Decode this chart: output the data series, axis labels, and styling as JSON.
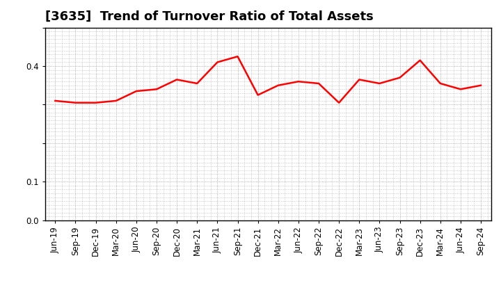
{
  "title": "[3635]  Trend of Turnover Ratio of Total Assets",
  "x_labels": [
    "Jun-19",
    "Sep-19",
    "Dec-19",
    "Mar-20",
    "Jun-20",
    "Sep-20",
    "Dec-20",
    "Mar-21",
    "Jun-21",
    "Sep-21",
    "Dec-21",
    "Mar-22",
    "Jun-22",
    "Sep-22",
    "Dec-22",
    "Mar-23",
    "Jun-23",
    "Sep-23",
    "Dec-23",
    "Mar-24",
    "Jun-24",
    "Sep-24"
  ],
  "y_values": [
    0.31,
    0.305,
    0.305,
    0.31,
    0.335,
    0.34,
    0.365,
    0.355,
    0.41,
    0.425,
    0.325,
    0.35,
    0.36,
    0.355,
    0.305,
    0.365,
    0.355,
    0.37,
    0.415,
    0.355,
    0.34,
    0.35
  ],
  "line_color": "#FF0000",
  "line_width": 1.8,
  "ylim": [
    0.0,
    0.5
  ],
  "yticks": [
    0.0,
    0.1,
    0.2,
    0.3,
    0.4,
    0.5
  ],
  "grid_color": "#999999",
  "grid_linestyle": ":",
  "bg_color": "#ffffff",
  "title_fontsize": 13,
  "tick_fontsize": 8.5
}
